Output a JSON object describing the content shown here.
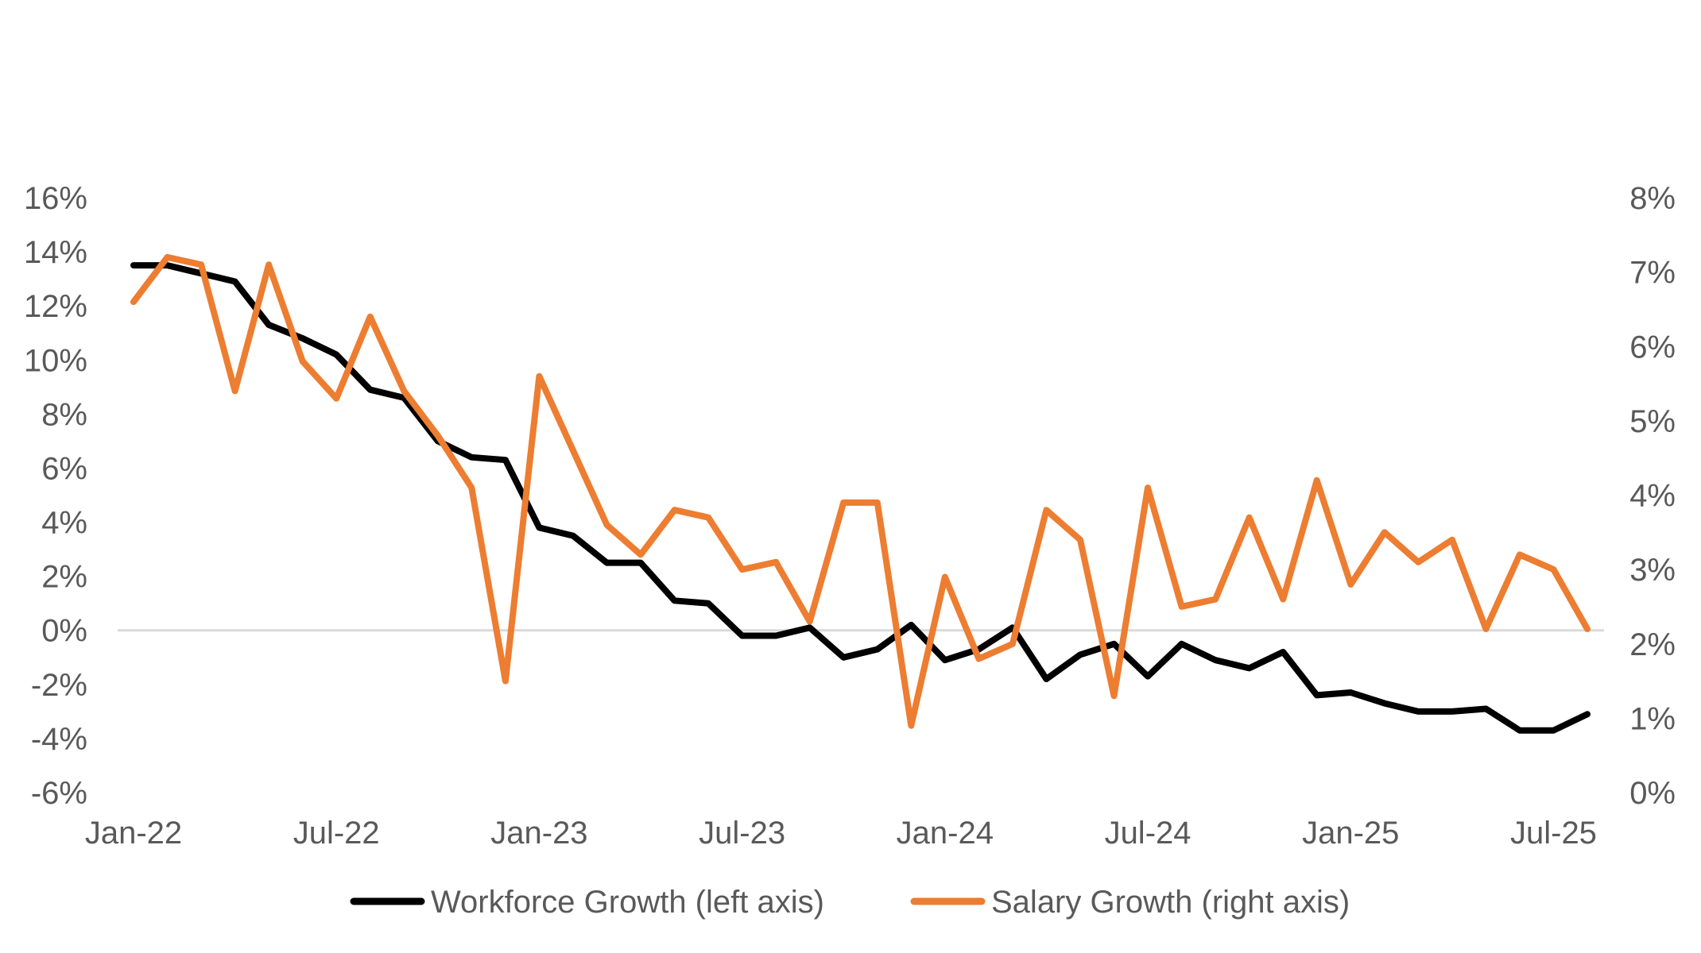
{
  "chart_data": {
    "type": "line",
    "title": "",
    "xlabel": "",
    "ylabel_left": "",
    "ylabel_right": "",
    "grid": false,
    "legend_position": "bottom",
    "x_tick_labels": [
      "Jan-22",
      "Jul-22",
      "Jan-23",
      "Jul-23",
      "Jan-24",
      "Jul-24",
      "Jan-25",
      "Jul-25"
    ],
    "x_tick_indices": [
      0,
      6,
      12,
      18,
      24,
      30,
      36,
      42
    ],
    "x_count": 44,
    "y_left": {
      "range": [
        -6,
        16
      ],
      "ticks": [
        -6,
        -4,
        -2,
        0,
        2,
        4,
        6,
        8,
        10,
        12,
        14,
        16
      ],
      "tick_labels": [
        "-6%",
        "-4%",
        "-2%",
        "0%",
        "2%",
        "4%",
        "6%",
        "8%",
        "10%",
        "12%",
        "14%",
        "16%"
      ]
    },
    "y_right": {
      "range": [
        0,
        8
      ],
      "ticks": [
        0,
        1,
        2,
        3,
        4,
        5,
        6,
        7,
        8
      ],
      "tick_labels": [
        "0%",
        "1%",
        "2%",
        "3%",
        "4%",
        "5%",
        "6%",
        "7%",
        "8%"
      ]
    },
    "series": [
      {
        "name": "Workforce Growth (left axis)",
        "axis": "left",
        "color": "#000000",
        "values": [
          13.5,
          13.5,
          13.2,
          12.9,
          11.3,
          10.8,
          10.2,
          8.9,
          8.6,
          7.0,
          6.4,
          6.3,
          3.8,
          3.5,
          2.5,
          2.5,
          1.1,
          1.0,
          -0.2,
          -0.2,
          0.1,
          -1.0,
          -0.7,
          0.2,
          -1.1,
          -0.7,
          0.1,
          -1.8,
          -0.9,
          -0.5,
          -1.7,
          -0.5,
          -1.1,
          -1.4,
          -0.8,
          -2.4,
          -2.3,
          -2.7,
          -3.0,
          -3.0,
          -2.9,
          -3.7,
          -3.7,
          -3.1
        ]
      },
      {
        "name": "Salary Growth (right axis)",
        "axis": "right",
        "color": "#ED7D31",
        "values": [
          6.6,
          7.2,
          7.1,
          5.4,
          7.1,
          5.8,
          5.3,
          6.4,
          5.4,
          4.8,
          4.1,
          1.5,
          5.6,
          4.6,
          3.6,
          3.2,
          3.8,
          3.7,
          3.0,
          3.1,
          2.3,
          3.9,
          3.9,
          0.9,
          2.9,
          1.8,
          2.0,
          3.8,
          3.4,
          1.3,
          4.1,
          2.5,
          2.6,
          3.7,
          2.6,
          4.2,
          2.8,
          3.5,
          3.1,
          3.4,
          2.2,
          3.2,
          3.0,
          2.2
        ]
      }
    ]
  }
}
